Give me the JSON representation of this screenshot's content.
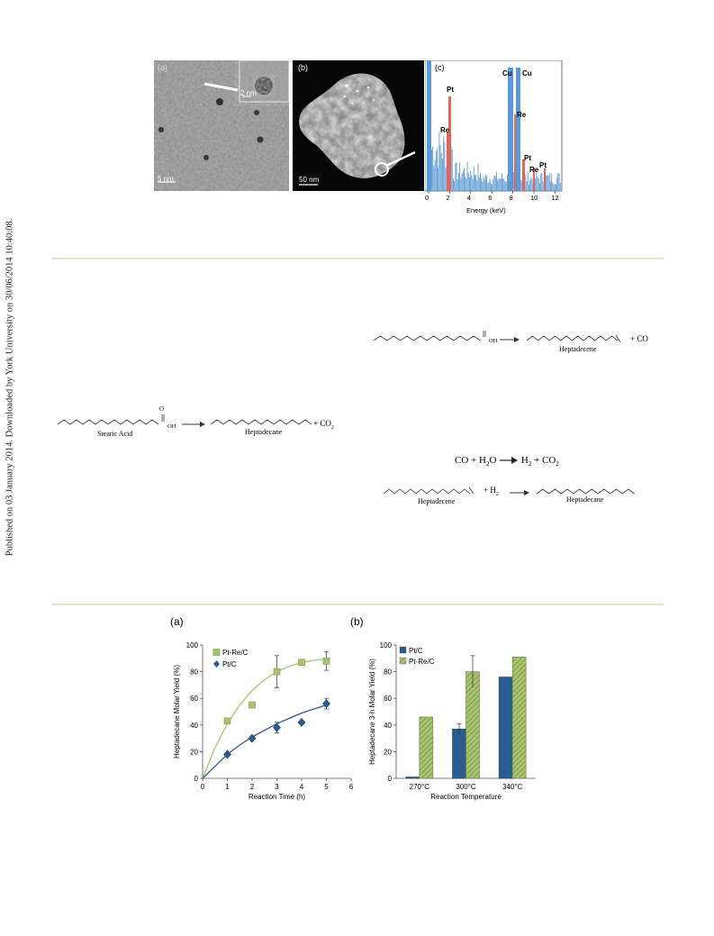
{
  "sidebar": {
    "text": "Published on 03 January 2014. Downloaded by York University on 30/06/2014 10:40:08."
  },
  "micrographs": {
    "a": {
      "label": "(a)",
      "scale": "5 nm",
      "inset_scale": "2 nm"
    },
    "b": {
      "label": "(b)",
      "scale": "50 nm"
    },
    "c": {
      "label": "(c)",
      "xlabel": "Energy (keV)",
      "xticks": [
        "0",
        "2",
        "4",
        "6",
        "8",
        "10",
        "12"
      ],
      "peaks": [
        "Cu",
        "Cu",
        "Pt",
        "Re",
        "Re",
        "Pt",
        "Re",
        "Pt"
      ]
    }
  },
  "reactions": {
    "r1": {
      "reactant": "Stearic Acid",
      "product": "Heptadecane",
      "byproduct": "CO",
      "byproduct_sub": "2",
      "oh": "OH",
      "o": "O"
    },
    "r2": {
      "product": "Heptadecene",
      "byproduct": "+ CO",
      "oh": "OH",
      "o": "O"
    },
    "r3": {
      "equation_prefix": "CO + H",
      "equation_mid": "O",
      "equation_arrow": "H",
      "equation_end": " + CO",
      "sub2": "2"
    },
    "r4": {
      "reactant": "Heptadecene",
      "reagent": "+ H",
      "reagent_sub": "2",
      "product": "Heptadecane"
    }
  },
  "chart_data": [
    {
      "type": "scatter",
      "panel": "(a)",
      "xlabel": "Reaction Time (h)",
      "ylabel": "Heptadecane  Molar Yield (%)",
      "xlim": [
        0,
        6
      ],
      "ylim": [
        0,
        100
      ],
      "xticks": [
        "0",
        "1",
        "2",
        "3",
        "4",
        "5",
        "6"
      ],
      "yticks": [
        "0",
        "20",
        "40",
        "60",
        "80",
        "100"
      ],
      "legend": "top-left",
      "series": [
        {
          "name": "Pt-Re/C",
          "color": "#a9c46f",
          "marker": "square",
          "x": [
            1,
            2,
            3,
            4,
            5
          ],
          "y": [
            43,
            55,
            80,
            87,
            88
          ],
          "err": [
            0,
            0,
            12,
            0,
            7
          ],
          "fit_x": [
            0,
            0.5,
            1,
            1.5,
            2,
            2.5,
            3,
            3.5,
            4,
            4.5,
            5
          ],
          "fit_y": [
            0,
            23,
            41,
            55,
            66,
            74,
            80,
            84,
            87,
            88.5,
            89.5
          ]
        },
        {
          "name": "Pt/C",
          "color": "#2a5d8f",
          "marker": "diamond",
          "x": [
            1,
            2,
            3,
            4,
            5
          ],
          "y": [
            18,
            30,
            38,
            42,
            56
          ],
          "err": [
            0,
            0,
            4,
            0,
            4
          ],
          "fit_x": [
            0,
            0.5,
            1,
            1.5,
            2,
            2.5,
            3,
            3.5,
            4,
            4.5,
            5
          ],
          "fit_y": [
            0,
            9,
            18,
            25,
            31,
            36,
            41,
            45,
            49,
            52,
            55
          ]
        }
      ]
    },
    {
      "type": "bar",
      "panel": "(b)",
      "xlabel": "Reaction Temperature",
      "ylabel": "Heptadecane 3-h Molar Yield (%)",
      "categories": [
        "270°C",
        "300°C",
        "340°C"
      ],
      "ylim": [
        0,
        100
      ],
      "yticks": [
        "0",
        "20",
        "40",
        "60",
        "80",
        "100"
      ],
      "legend": "top-left",
      "series": [
        {
          "name": "Pt/C",
          "color": "#2a5d8f",
          "values": [
            1,
            37,
            76
          ],
          "err": [
            0,
            4,
            0
          ]
        },
        {
          "name": "Pt-Re/C",
          "color": "#a9c46f",
          "values": [
            46,
            80,
            91
          ],
          "err": [
            0,
            12,
            0
          ]
        }
      ]
    }
  ]
}
